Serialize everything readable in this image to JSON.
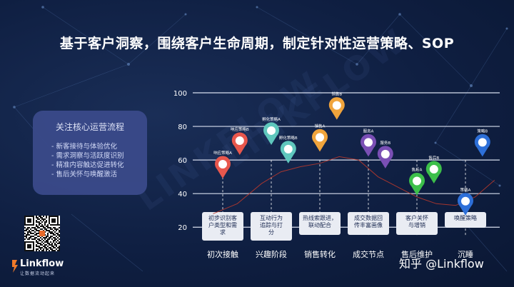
{
  "title": "基于客户洞察，围绕客户生命周期，制定针对性运营策略、SOP",
  "focus": {
    "heading": "关注核心运营流程",
    "items": [
      "新客接待与体验优化",
      "需求洞察与活跃度识别",
      "精准内容触达促进转化",
      "售后关怀与唤醒激活"
    ]
  },
  "logo": {
    "name": "Linkflow",
    "tagline": "让数据流动起来",
    "watermark_text": "LINKFLOW"
  },
  "watermark": "知乎 @Linkflow",
  "colors": {
    "background": "#0f1f42",
    "box": "#3a4a8a",
    "curve": "#c0392b",
    "card": "#e9ecf3"
  },
  "chart_data": {
    "type": "line",
    "y_ticks": [
      20,
      40,
      60,
      80,
      100
    ],
    "ylim": [
      15,
      100
    ],
    "grid": true,
    "stages": [
      {
        "label": "初次接触",
        "card": [
          "初步识别客",
          "户类型和需",
          "求"
        ]
      },
      {
        "label": "兴趣阶段",
        "card": [
          "互动行为",
          "追踪与打",
          "分"
        ]
      },
      {
        "label": "销售转化",
        "card": [
          "热线索跟进，",
          "联动配合"
        ]
      },
      {
        "label": "成交节点",
        "card": [
          "成交数据回",
          "传丰富画像"
        ]
      },
      {
        "label": "售后维护",
        "card": [
          "客户关怀",
          "与增销"
        ]
      },
      {
        "label": "沉睡",
        "card": [
          "唤醒策略"
        ]
      }
    ],
    "pins": [
      {
        "label": "响应策略A",
        "x": 0.0,
        "y": 49,
        "color": "#e8574d"
      },
      {
        "label": "响应策略B",
        "x": 0.35,
        "y": 63,
        "color": "#e8574d"
      },
      {
        "label": "孵化策略A",
        "x": 1.0,
        "y": 69,
        "color": "#5fc7bd"
      },
      {
        "label": "孵化策略B",
        "x": 1.35,
        "y": 58,
        "color": "#5fc7bd"
      },
      {
        "label": "销售A",
        "x": 2.0,
        "y": 65,
        "color": "#f0a43c"
      },
      {
        "label": "销售B",
        "x": 2.35,
        "y": 84,
        "color": "#f0a43c"
      },
      {
        "label": "服务A",
        "x": 3.0,
        "y": 62,
        "color": "#7a4fb5"
      },
      {
        "label": "服务B",
        "x": 3.35,
        "y": 55,
        "color": "#7a4fb5"
      },
      {
        "label": "售后A",
        "x": 4.0,
        "y": 39,
        "color": "#3cbf4a"
      },
      {
        "label": "售后B",
        "x": 4.35,
        "y": 46,
        "color": "#3cbf4a"
      },
      {
        "label": "策略A",
        "x": 5.0,
        "y": 27,
        "color": "#2d6fd8"
      },
      {
        "label": "策略B",
        "x": 5.35,
        "y": 62,
        "color": "#2d6fd8"
      }
    ],
    "curve": [
      {
        "x": -0.2,
        "y": 28
      },
      {
        "x": 0.3,
        "y": 34
      },
      {
        "x": 0.8,
        "y": 46
      },
      {
        "x": 1.2,
        "y": 53
      },
      {
        "x": 1.6,
        "y": 56
      },
      {
        "x": 2.0,
        "y": 58
      },
      {
        "x": 2.4,
        "y": 62
      },
      {
        "x": 2.8,
        "y": 60
      },
      {
        "x": 3.2,
        "y": 50
      },
      {
        "x": 3.6,
        "y": 44
      },
      {
        "x": 4.0,
        "y": 38
      },
      {
        "x": 4.4,
        "y": 34
      },
      {
        "x": 4.8,
        "y": 33
      },
      {
        "x": 5.2,
        "y": 38
      },
      {
        "x": 5.6,
        "y": 48
      }
    ]
  }
}
